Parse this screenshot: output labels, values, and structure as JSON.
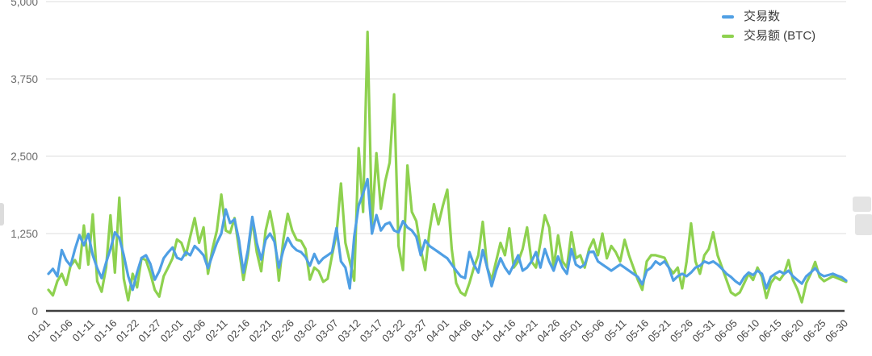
{
  "chart_data": {
    "type": "line",
    "title": "",
    "xlabel": "",
    "ylabel": "",
    "ylim": [
      0,
      5000
    ],
    "yticks": [
      0,
      1250,
      2500,
      3750,
      5000
    ],
    "ytick_labels": [
      "0",
      "1,250",
      "2,500",
      "3,750",
      "5,000"
    ],
    "xtick_every": 5,
    "grid": true,
    "legend_position": "top-right",
    "layout": {
      "grid_color": "#e3e3e3",
      "axis_color": "#3f3f3f",
      "ylabel_color": "#6b6b6b",
      "xlabel_color": "#474747"
    },
    "x": [
      "01-01",
      "01-02",
      "01-03",
      "01-04",
      "01-05",
      "01-06",
      "01-07",
      "01-08",
      "01-09",
      "01-10",
      "01-11",
      "01-12",
      "01-13",
      "01-14",
      "01-15",
      "01-16",
      "01-18",
      "01-19",
      "01-20",
      "01-21",
      "01-22",
      "01-23",
      "01-24",
      "01-25",
      "01-26",
      "01-27",
      "01-28",
      "01-29",
      "01-30",
      "01-31",
      "02-01",
      "02-02",
      "02-03",
      "02-04",
      "02-05",
      "02-06",
      "02-07",
      "02-08",
      "02-09",
      "02-10",
      "02-11",
      "02-12",
      "02-13",
      "02-14",
      "02-15",
      "02-16",
      "02-17",
      "02-18",
      "02-19",
      "02-20",
      "02-21",
      "02-22",
      "02-23",
      "02-24",
      "02-25",
      "02-26",
      "02-27",
      "02-28",
      "02-29",
      "03-01",
      "03-02",
      "03-03",
      "03-04",
      "03-05",
      "03-06",
      "03-07",
      "03-08",
      "03-09",
      "03-10",
      "03-11",
      "03-12",
      "03-13",
      "03-14",
      "03-15",
      "03-16",
      "03-17",
      "03-18",
      "03-19",
      "03-20",
      "03-21",
      "03-22",
      "03-23",
      "03-24",
      "03-25",
      "03-26",
      "03-27",
      "03-28",
      "03-29",
      "03-30",
      "03-31",
      "04-01",
      "04-02",
      "04-03",
      "04-04",
      "04-05",
      "04-06",
      "04-07",
      "04-08",
      "04-09",
      "04-10",
      "04-11",
      "04-12",
      "04-13",
      "04-14",
      "04-15",
      "04-16",
      "04-17",
      "04-18",
      "04-19",
      "04-20",
      "04-21",
      "04-22",
      "04-23",
      "04-24",
      "04-25",
      "04-26",
      "04-27",
      "04-28",
      "04-29",
      "04-30",
      "05-01",
      "05-02",
      "05-03",
      "05-04",
      "05-05",
      "05-06",
      "05-07",
      "05-08",
      "05-09",
      "05-10",
      "05-11",
      "05-12",
      "05-13",
      "05-14",
      "05-15",
      "05-16",
      "05-17",
      "05-18",
      "05-19",
      "05-20",
      "05-21",
      "05-22",
      "05-23",
      "05-24",
      "05-25",
      "05-26",
      "05-27",
      "05-28",
      "05-29",
      "05-30",
      "05-31",
      "06-01",
      "06-02",
      "06-03",
      "06-04",
      "06-05",
      "06-06",
      "06-07",
      "06-08",
      "06-09",
      "06-10",
      "06-11",
      "06-12",
      "06-13",
      "06-14",
      "06-15",
      "06-16",
      "06-17",
      "06-18",
      "06-19",
      "06-20",
      "06-21",
      "06-22",
      "06-23",
      "06-24",
      "06-25",
      "06-26",
      "06-27",
      "06-28",
      "06-29",
      "06-30"
    ],
    "series": [
      {
        "key": "transaction-count",
        "name": "交易数",
        "color": "#4f9fe4",
        "values": [
          600,
          680,
          560,
          985,
          820,
          730,
          1000,
          1225,
          1060,
          1245,
          900,
          690,
          530,
          780,
          1000,
          1270,
          1180,
          900,
          560,
          340,
          620,
          855,
          900,
          760,
          505,
          640,
          850,
          945,
          1025,
          860,
          830,
          950,
          900,
          1050,
          980,
          900,
          690,
          900,
          1100,
          1250,
          1640,
          1420,
          1480,
          1140,
          620,
          980,
          1520,
          1100,
          830,
          1150,
          1250,
          1120,
          700,
          980,
          1180,
          1050,
          980,
          950,
          870,
          730,
          920,
          770,
          850,
          900,
          950,
          1340,
          800,
          700,
          365,
          1200,
          1700,
          1900,
          2130,
          1250,
          1550,
          1300,
          1400,
          1430,
          1300,
          1270,
          1450,
          1350,
          1300,
          1200,
          900,
          1140,
          1050,
          1000,
          950,
          900,
          850,
          750,
          650,
          560,
          530,
          950,
          750,
          620,
          985,
          700,
          400,
          650,
          850,
          700,
          600,
          750,
          900,
          650,
          700,
          800,
          950,
          700,
          1000,
          800,
          650,
          880,
          700,
          600,
          1000,
          750,
          700,
          750,
          950,
          960,
          800,
          750,
          700,
          650,
          700,
          750,
          700,
          650,
          600,
          550,
          430,
          650,
          700,
          800,
          750,
          800,
          700,
          490,
          560,
          600,
          560,
          620,
          700,
          730,
          800,
          770,
          800,
          750,
          680,
          600,
          550,
          480,
          430,
          550,
          620,
          580,
          650,
          600,
          365,
          550,
          600,
          640,
          600,
          650,
          560,
          500,
          440,
          560,
          620,
          690,
          600,
          560,
          580,
          600,
          570,
          545,
          490
        ]
      },
      {
        "key": "transaction-volume-btc",
        "name": "交易额 (BTC)",
        "color": "#8ed14f",
        "values": [
          340,
          250,
          480,
          600,
          420,
          730,
          820,
          690,
          1380,
          750,
          1560,
          480,
          310,
          700,
          1545,
          620,
          1830,
          520,
          170,
          600,
          380,
          855,
          820,
          610,
          340,
          230,
          560,
          700,
          850,
          1155,
          1100,
          900,
          1200,
          1500,
          1100,
          1350,
          600,
          1000,
          1300,
          1880,
          1300,
          1260,
          1500,
          1000,
          500,
          900,
          1480,
          950,
          640,
          1300,
          1610,
          1230,
          490,
          1150,
          1570,
          1300,
          1150,
          1130,
          1000,
          505,
          700,
          640,
          470,
          520,
          900,
          1250,
          2060,
          1100,
          800,
          490,
          2630,
          1600,
          4510,
          1400,
          2550,
          1650,
          2100,
          2400,
          3500,
          1050,
          660,
          2350,
          1600,
          1450,
          1000,
          660,
          1300,
          1725,
          1400,
          1700,
          1960,
          1000,
          450,
          300,
          250,
          450,
          700,
          900,
          1440,
          700,
          500,
          800,
          1100,
          900,
          1335,
          700,
          800,
          1000,
          1350,
          800,
          700,
          1100,
          1545,
          1350,
          700,
          1220,
          800,
          700,
          1270,
          850,
          900,
          700,
          1000,
          1155,
          900,
          1250,
          850,
          1050,
          950,
          800,
          1150,
          900,
          700,
          500,
          340,
          800,
          900,
          900,
          880,
          860,
          700,
          610,
          700,
          365,
          800,
          1415,
          800,
          600,
          900,
          1000,
          1270,
          900,
          700,
          500,
          300,
          250,
          300,
          450,
          600,
          500,
          700,
          550,
          210,
          450,
          550,
          500,
          600,
          820,
          500,
          350,
          140,
          450,
          600,
          790,
          550,
          480,
          520,
          560,
          530,
          500,
          470
        ]
      }
    ]
  },
  "legend": {
    "items": [
      {
        "label": "交易数"
      },
      {
        "label": "交易额 (BTC)"
      }
    ]
  },
  "watermark": {
    "color": "#e4e4e4"
  }
}
